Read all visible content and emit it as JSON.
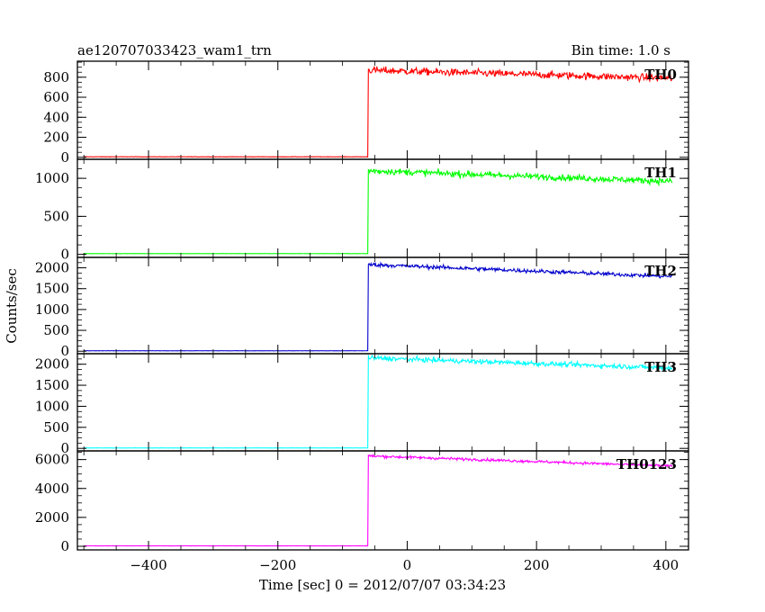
{
  "header": {
    "left": "ae120707033423_wam1_trn",
    "right": "Bin time: 1.0 s"
  },
  "axes": {
    "xlabel": "Time [sec] 0 = 2012/07/07 03:34:23",
    "ylabel": "Counts/sec"
  },
  "chart_data": {
    "type": "line",
    "xlim": [
      -510,
      435
    ],
    "x_ticks": [
      -400,
      -200,
      0,
      200,
      400
    ],
    "x_tick_labels": [
      "−400",
      "−200",
      "0",
      "200",
      "400"
    ],
    "x_range": [
      -500,
      410
    ],
    "rise_time": -60,
    "panels": [
      {
        "name": "TH0",
        "color": "#ff0000",
        "ylim": [
          -20,
          960
        ],
        "yticks": [
          0,
          200,
          400,
          600,
          800
        ],
        "pre_level": 5,
        "post_start": 870,
        "post_end": 790,
        "noise": 35
      },
      {
        "name": "TH1",
        "color": "#00ff00",
        "ylim": [
          -40,
          1250
        ],
        "yticks": [
          0,
          500,
          1000
        ],
        "pre_level": 10,
        "post_start": 1100,
        "post_end": 960,
        "noise": 40
      },
      {
        "name": "TH2",
        "color": "#0000cc",
        "ylim": [
          -60,
          2250
        ],
        "yticks": [
          0,
          500,
          1000,
          1500,
          2000
        ],
        "pre_level": 10,
        "post_start": 2080,
        "post_end": 1790,
        "noise": 45
      },
      {
        "name": "TH3",
        "color": "#00ffff",
        "ylim": [
          -60,
          2250
        ],
        "yticks": [
          0,
          500,
          1000,
          1500,
          2000
        ],
        "pre_level": 10,
        "post_start": 2150,
        "post_end": 1910,
        "noise": 55
      },
      {
        "name": "TH0123",
        "color": "#ff00ff",
        "ylim": [
          -250,
          6600
        ],
        "yticks": [
          0,
          2000,
          4000,
          6000
        ],
        "pre_level": 30,
        "post_start": 6250,
        "post_end": 5550,
        "noise": 90
      }
    ]
  }
}
